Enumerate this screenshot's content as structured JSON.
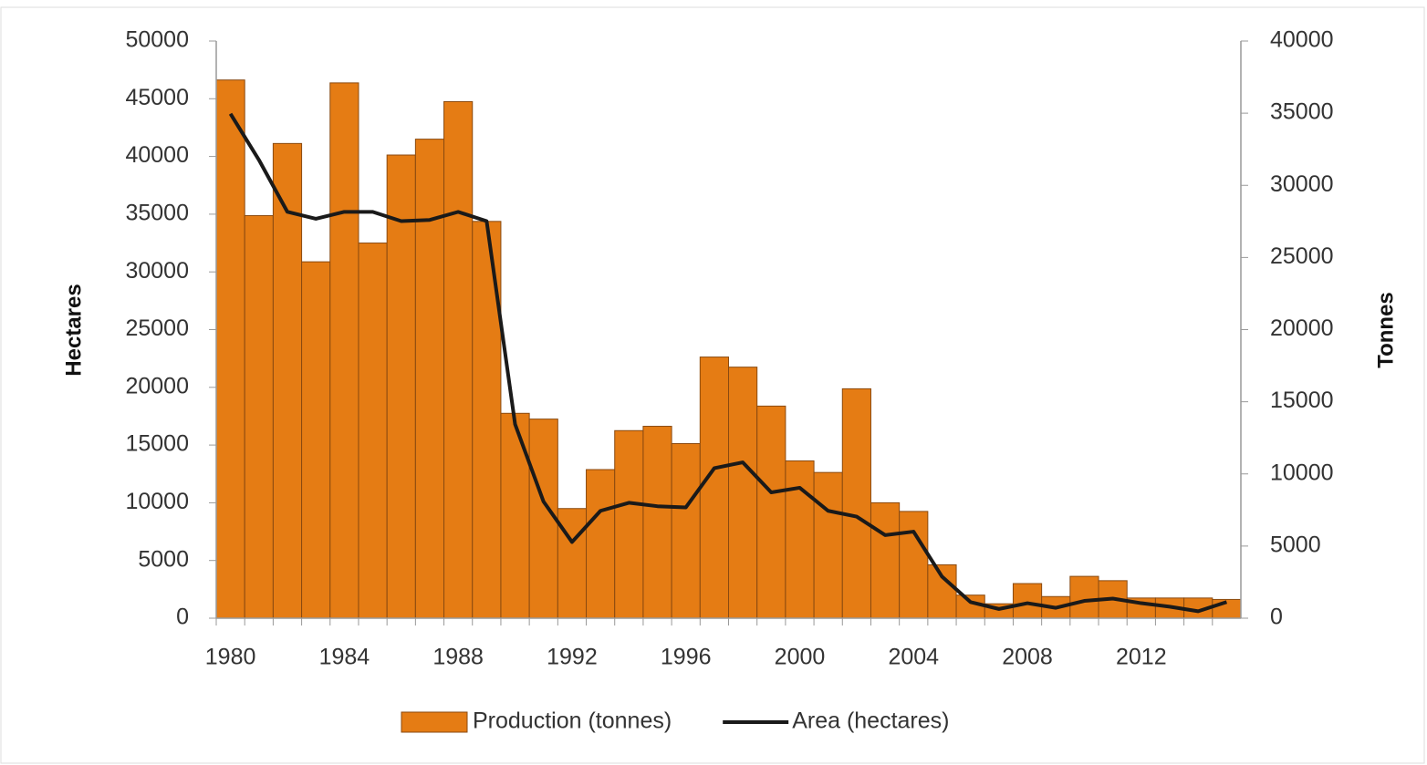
{
  "chart_data": {
    "type": "bar",
    "categories": [
      "1980",
      null,
      null,
      null,
      "1984",
      null,
      null,
      null,
      "1988",
      null,
      null,
      null,
      "1992",
      null,
      null,
      null,
      "1996",
      null,
      null,
      null,
      "2000",
      null,
      null,
      null,
      "2004",
      null,
      null,
      null,
      "2008",
      null,
      null,
      null,
      "2012",
      null,
      null,
      null
    ],
    "y_label": "Hectares",
    "y2_label": "Tonnes",
    "ylim": [
      0,
      50000
    ],
    "yticks": [
      0,
      5000,
      10000,
      15000,
      20000,
      25000,
      30000,
      35000,
      40000,
      45000,
      50000
    ],
    "y2lim": [
      0,
      40000
    ],
    "y2ticks": [
      0,
      5000,
      10000,
      15000,
      20000,
      25000,
      30000,
      35000,
      40000
    ],
    "legend": "bottom",
    "series": [
      {
        "name": "Production (tonnes)",
        "type": "bar",
        "axis": "y2",
        "color": "#e57c14",
        "values": [
          37300,
          27900,
          32900,
          24700,
          37100,
          26000,
          32100,
          33200,
          35800,
          27500,
          14200,
          13800,
          7600,
          10300,
          13000,
          13300,
          12100,
          18100,
          17400,
          14700,
          10900,
          10100,
          15900,
          8000,
          7400,
          3700,
          1600,
          1000,
          2400,
          1500,
          2900,
          2600,
          1400,
          1400,
          1400,
          1300
        ]
      },
      {
        "name": "Area (hectares)",
        "type": "line",
        "axis": "y",
        "color": "#1a1a1a",
        "values": [
          43700,
          39700,
          35200,
          34600,
          35200,
          35200,
          34400,
          34500,
          35200,
          34400,
          16800,
          10100,
          6600,
          9300,
          10000,
          9700,
          9600,
          13000,
          13500,
          10900,
          11300,
          9300,
          8800,
          7200,
          7500,
          3600,
          1400,
          800,
          1300,
          900,
          1500,
          1700,
          1300,
          1000,
          600,
          1400
        ]
      }
    ]
  }
}
